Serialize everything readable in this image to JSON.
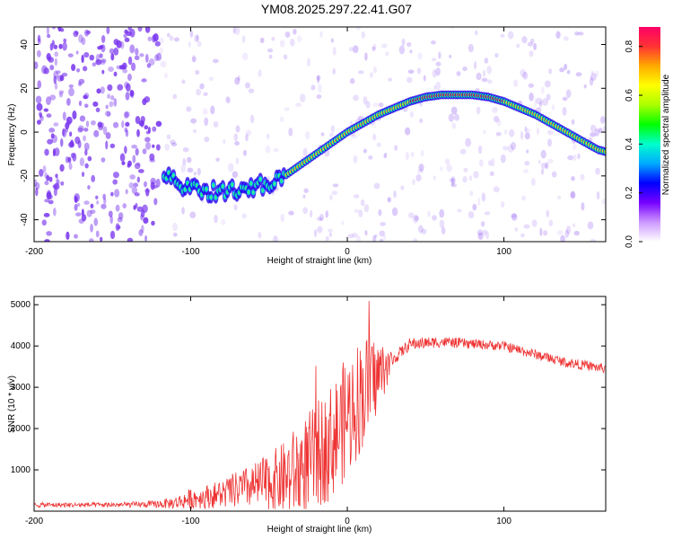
{
  "title": "YM08.2025.297.22.41.G07",
  "colors": {
    "snr_line": "#ee3333",
    "spectrogram_noise": "#7733ee",
    "colorbar_stops": [
      "#ffffff",
      "#cc99ff",
      "#7700ff",
      "#0000ff",
      "#00aaff",
      "#00ffcc",
      "#00ff00",
      "#aaff00",
      "#ffff00",
      "#ffaa00",
      "#ff3333",
      "#ff0066"
    ]
  },
  "chart_data": [
    {
      "type": "heatmap",
      "name": "spectrogram",
      "xlabel": "Height of straight line (km)",
      "ylabel": "Frequency (Hz)",
      "xlim": [
        -200,
        165
      ],
      "ylim": [
        -50,
        48
      ],
      "xticks": [
        -200,
        -100,
        0,
        100
      ],
      "yticks": [
        -40,
        -20,
        0,
        20,
        40
      ],
      "colorbar": {
        "label": "Normalized spectral amplitude",
        "range": [
          0.0,
          0.88
        ],
        "ticks": [
          "0.0",
          "0.2",
          "0.4",
          "0.6",
          "0.8"
        ]
      },
      "ridge": {
        "x": [
          -117,
          -110,
          -100,
          -90,
          -80,
          -70,
          -60,
          -50,
          -40,
          -30,
          -20,
          -10,
          0,
          10,
          20,
          30,
          40,
          50,
          60,
          70,
          80,
          90,
          100,
          110,
          120,
          130,
          140,
          150,
          160,
          165
        ],
        "frequency": [
          -18,
          -23,
          -26,
          -27,
          -27,
          -26,
          -25,
          -23,
          -20,
          -15,
          -10,
          -5,
          0,
          4,
          8,
          11,
          14,
          16,
          17,
          17,
          17,
          16,
          14,
          11,
          8,
          4,
          0,
          -4,
          -8,
          -9
        ]
      }
    },
    {
      "type": "line",
      "name": "snr",
      "xlabel": "Height of straight line (km)",
      "ylabel": "SNR (10 * v/v)",
      "xlim": [
        -200,
        165
      ],
      "ylim": [
        0,
        5200
      ],
      "xticks": [
        -200,
        -100,
        0,
        100
      ],
      "yticks": [
        1000,
        2000,
        3000,
        4000,
        5000
      ],
      "envelope": {
        "x": [
          -200,
          -160,
          -130,
          -120,
          -110,
          -100,
          -90,
          -80,
          -70,
          -60,
          -50,
          -40,
          -30,
          -20,
          -10,
          0,
          10,
          20,
          30,
          40,
          60,
          80,
          100,
          120,
          140,
          165
        ],
        "mean": [
          150,
          150,
          160,
          170,
          200,
          300,
          350,
          420,
          520,
          600,
          700,
          800,
          1000,
          1300,
          1700,
          2300,
          2900,
          3300,
          3700,
          4050,
          4100,
          4050,
          4000,
          3800,
          3600,
          3450
        ],
        "amplitude": [
          60,
          60,
          70,
          100,
          150,
          250,
          280,
          350,
          450,
          550,
          700,
          900,
          1200,
          1300,
          1400,
          1500,
          1400,
          900,
          150,
          150,
          130,
          120,
          120,
          120,
          120,
          120
        ]
      }
    }
  ]
}
